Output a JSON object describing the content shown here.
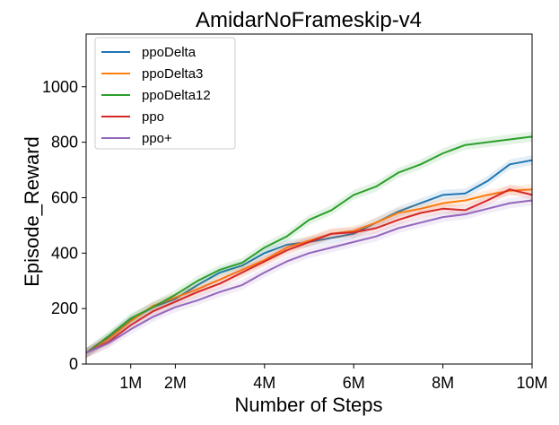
{
  "chart_data": {
    "type": "line",
    "title": "AmidarNoFrameskip-v4",
    "xlabel": "Number of Steps",
    "ylabel": "Episode_Reward",
    "xlim": [
      0,
      10
    ],
    "ylim": [
      0,
      1190
    ],
    "x_unit": "M",
    "x_ticks": [
      1,
      2,
      4,
      6,
      8,
      10
    ],
    "x_tick_labels": [
      "1M",
      "2M",
      "4M",
      "6M",
      "8M",
      "10M"
    ],
    "y_ticks": [
      0,
      200,
      400,
      600,
      800,
      1000
    ],
    "y_tick_labels": [
      "0",
      "200",
      "400",
      "600",
      "800",
      "1000"
    ],
    "grid": false,
    "legend_position": "top-left",
    "x": [
      0,
      0.5,
      1,
      1.5,
      2,
      2.5,
      3,
      3.5,
      4,
      4.5,
      5,
      5.5,
      6,
      6.5,
      7,
      7.5,
      8,
      8.5,
      9,
      9.5,
      10
    ],
    "series": [
      {
        "name": "ppoDelta",
        "color": "#1f77b4",
        "values": [
          40,
          95,
          160,
          205,
          235,
          285,
          330,
          355,
          400,
          430,
          440,
          455,
          470,
          510,
          550,
          580,
          610,
          615,
          660,
          720,
          735
        ]
      },
      {
        "name": "ppoDelta3",
        "color": "#ff7f0e",
        "values": [
          40,
          90,
          155,
          210,
          240,
          270,
          305,
          340,
          375,
          420,
          445,
          470,
          480,
          510,
          545,
          560,
          580,
          590,
          610,
          625,
          630
        ]
      },
      {
        "name": "ppoDelta12",
        "color": "#2ca02c",
        "values": [
          40,
          100,
          165,
          205,
          250,
          300,
          340,
          365,
          420,
          460,
          520,
          555,
          610,
          640,
          690,
          720,
          760,
          790,
          800,
          810,
          820
        ]
      },
      {
        "name": "ppo",
        "color": "#d62728",
        "values": [
          40,
          80,
          140,
          190,
          225,
          260,
          290,
          330,
          370,
          410,
          440,
          470,
          475,
          490,
          520,
          545,
          560,
          555,
          590,
          630,
          610
        ]
      },
      {
        "name": "ppo+",
        "color": "#9467bd",
        "values": [
          40,
          75,
          125,
          170,
          205,
          230,
          260,
          285,
          330,
          370,
          400,
          420,
          440,
          460,
          490,
          510,
          530,
          540,
          560,
          580,
          590
        ]
      }
    ]
  }
}
